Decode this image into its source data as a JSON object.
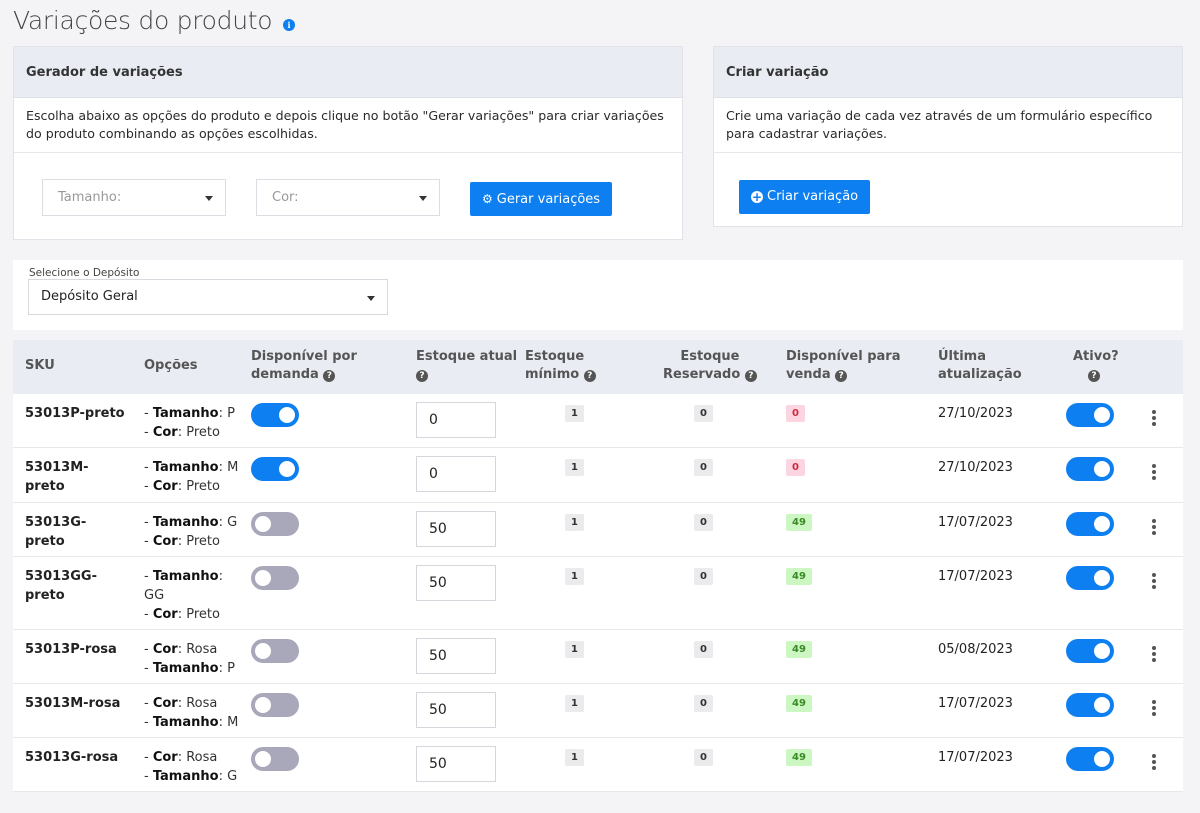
{
  "page": {
    "title": "Variações do produto",
    "info_icon": "info-icon"
  },
  "generator": {
    "title": "Gerador de variações",
    "description": "Escolha abaixo as opções do produto e depois clique no botão \"Gerar variações\" para criar variações do produto combinando as opções escolhidas.",
    "size_placeholder": "Tamanho:",
    "color_placeholder": "Cor:",
    "button_label": "Gerar variações"
  },
  "create": {
    "title": "Criar variação",
    "description": "Crie uma variação de cada vez através de um formulário específico para cadastrar variações.",
    "button_label": "Criar variação"
  },
  "deposit": {
    "label": "Selecione o Depósito",
    "value": "Depósito Geral"
  },
  "table": {
    "headers": {
      "sku": "SKU",
      "options": "Opções",
      "on_demand": "Disponível por demanda",
      "on_demand_l1": "Disponível por",
      "on_demand_l2": "demanda",
      "stock": "Estoque atual",
      "min_l1": "Estoque",
      "min_l2": "mínimo",
      "reserved_l1": "Estoque",
      "reserved_l2": "Reservado",
      "available_l1": "Disponível para",
      "available_l2": "venda",
      "updated_l1": "Última",
      "updated_l2": "atualização",
      "active": "Ativo?"
    },
    "rows": [
      {
        "sku1": "53013P-preto",
        "sku2": "",
        "o1k": "Tamanho",
        "o1v": ": P",
        "o2k": "Cor",
        "o2v": ": Preto",
        "on_demand": true,
        "stock": "0",
        "min": "1",
        "reserved": "0",
        "available": "0",
        "available_status": "red",
        "updated": "27/10/2023",
        "active": true
      },
      {
        "sku1": "53013M-",
        "sku2": "preto",
        "o1k": "Tamanho",
        "o1v": ": M",
        "o2k": "Cor",
        "o2v": ": Preto",
        "on_demand": true,
        "stock": "0",
        "min": "1",
        "reserved": "0",
        "available": "0",
        "available_status": "red",
        "updated": "27/10/2023",
        "active": true
      },
      {
        "sku1": "53013G-",
        "sku2": "preto",
        "o1k": "Tamanho",
        "o1v": ": G",
        "o2k": "Cor",
        "o2v": ": Preto",
        "on_demand": false,
        "stock": "50",
        "min": "1",
        "reserved": "0",
        "available": "49",
        "available_status": "green",
        "updated": "17/07/2023",
        "active": true
      },
      {
        "sku1": "53013GG-",
        "sku2": "preto",
        "o1k": "Tamanho",
        "o1v": ":",
        "o1v2": "GG",
        "o2k": "Cor",
        "o2v": ": Preto",
        "on_demand": false,
        "stock": "50",
        "min": "1",
        "reserved": "0",
        "available": "49",
        "available_status": "green",
        "updated": "17/07/2023",
        "active": true
      },
      {
        "sku1": "53013P-rosa",
        "sku2": "",
        "o1k": "Cor",
        "o1v": ": Rosa",
        "o2k": "Tamanho",
        "o2v": ": P",
        "on_demand": false,
        "stock": "50",
        "min": "1",
        "reserved": "0",
        "available": "49",
        "available_status": "green",
        "updated": "05/08/2023",
        "active": true
      },
      {
        "sku1": "53013M-rosa",
        "sku2": "",
        "o1k": "Cor",
        "o1v": ": Rosa",
        "o2k": "Tamanho",
        "o2v": ": M",
        "on_demand": false,
        "stock": "50",
        "min": "1",
        "reserved": "0",
        "available": "49",
        "available_status": "green",
        "updated": "17/07/2023",
        "active": true
      },
      {
        "sku1": "53013G-rosa",
        "sku2": "",
        "o1k": "Cor",
        "o1v": ": Rosa",
        "o2k": "Tamanho",
        "o2v": ": G",
        "on_demand": false,
        "stock": "50",
        "min": "1",
        "reserved": "0",
        "available": "49",
        "available_status": "green",
        "updated": "17/07/2023",
        "active": true
      }
    ]
  },
  "colors": {
    "accent": "#0d7ff0",
    "toggle_off": "#a8a8ba",
    "badge_red": "#fbd6e1",
    "badge_green": "#ccf7c2"
  }
}
